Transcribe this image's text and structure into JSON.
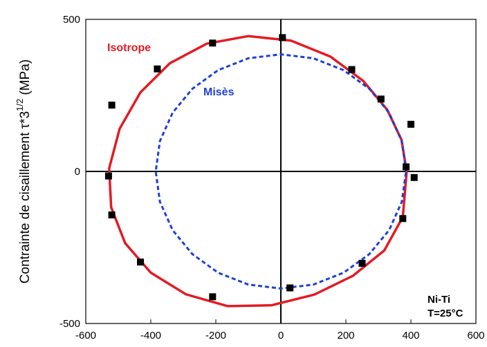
{
  "chart_data": {
    "type": "scatter",
    "xlim": [
      -600,
      600
    ],
    "ylim": [
      -500,
      500
    ],
    "x_ticks": [
      "-600",
      "-400",
      "-200",
      "0",
      "200",
      "400",
      "600"
    ],
    "y_ticks": [
      "500",
      "0",
      "-500"
    ],
    "xlabel": "",
    "ylabel": "Contrainte de cisaillement τ*3",
    "ylabel_superscript": "1/2",
    "ylabel_unit": "(MPa)",
    "grid": false,
    "series": [
      {
        "name": "Isotrope",
        "kind": "curve",
        "style": "solid",
        "color": "#e31b23",
        "points": [
          [
            387,
            0
          ],
          [
            371,
            104
          ],
          [
            327,
            203
          ],
          [
            253,
            298
          ],
          [
            152,
            378
          ],
          [
            31,
            430
          ],
          [
            -100,
            445
          ],
          [
            -228,
            420
          ],
          [
            -341,
            356
          ],
          [
            -432,
            260
          ],
          [
            -496,
            140
          ],
          [
            -528,
            10
          ],
          [
            -522,
            -118
          ],
          [
            -479,
            -236
          ],
          [
            -400,
            -333
          ],
          [
            -292,
            -404
          ],
          [
            -163,
            -443
          ],
          [
            -28,
            -440
          ],
          [
            103,
            -405
          ],
          [
            222,
            -343
          ],
          [
            318,
            -260
          ],
          [
            375,
            -150
          ],
          [
            387,
            0
          ]
        ]
      },
      {
        "name": "Misès",
        "kind": "curve",
        "style": "dashed",
        "color": "#1f3fd6",
        "points": [
          [
            385,
            0
          ],
          [
            372,
            100
          ],
          [
            333,
            193
          ],
          [
            272,
            272
          ],
          [
            193,
            333
          ],
          [
            100,
            372
          ],
          [
            0,
            385
          ],
          [
            -100,
            372
          ],
          [
            -193,
            333
          ],
          [
            -272,
            272
          ],
          [
            -333,
            193
          ],
          [
            -372,
            100
          ],
          [
            -385,
            0
          ],
          [
            -372,
            -100
          ],
          [
            -333,
            -193
          ],
          [
            -272,
            -272
          ],
          [
            -193,
            -333
          ],
          [
            -100,
            -372
          ],
          [
            0,
            -385
          ],
          [
            100,
            -372
          ],
          [
            193,
            -333
          ],
          [
            272,
            -272
          ],
          [
            333,
            -193
          ],
          [
            372,
            -100
          ],
          [
            385,
            0
          ]
        ]
      },
      {
        "name": "",
        "kind": "markers",
        "color": "#000000",
        "points": [
          [
            -520,
            218
          ],
          [
            -380,
            337
          ],
          [
            -210,
            422
          ],
          [
            5,
            440
          ],
          [
            218,
            335
          ],
          [
            308,
            238
          ],
          [
            400,
            155
          ],
          [
            385,
            15
          ],
          [
            410,
            -20
          ],
          [
            -530,
            -15
          ],
          [
            -520,
            -143
          ],
          [
            -432,
            -298
          ],
          [
            -210,
            -412
          ],
          [
            28,
            -383
          ],
          [
            250,
            -302
          ],
          [
            375,
            -155
          ]
        ]
      }
    ]
  },
  "labels": {
    "isotrope": "Isotrope",
    "mises": "Misès",
    "material": "Ni-Ti",
    "temperature": "T=25°C"
  }
}
